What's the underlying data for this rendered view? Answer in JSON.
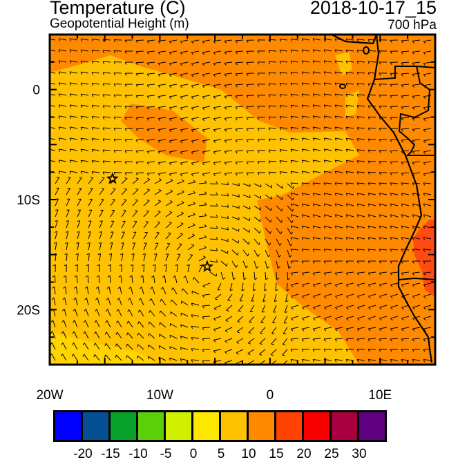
{
  "header": {
    "title": "Temperature (C)",
    "subtitle": "Geopotential Height (m)",
    "datetime": "2018-10-17_15",
    "level": "700 hPa"
  },
  "axes": {
    "x_labels": [
      {
        "lon": -20,
        "text": "20W"
      },
      {
        "lon": -10,
        "text": "10W"
      },
      {
        "lon": 0,
        "text": "0"
      },
      {
        "lon": 10,
        "text": "10E"
      }
    ],
    "y_labels": [
      {
        "lat": 0,
        "text": "0"
      },
      {
        "lat": -10,
        "text": "10S"
      },
      {
        "lat": -20,
        "text": "20S"
      }
    ],
    "lon_range": [
      -20,
      15
    ],
    "lat_range": [
      -25,
      5
    ]
  },
  "markers": [
    {
      "name": "star",
      "lon": -14.3,
      "lat": -8.1
    },
    {
      "name": "star",
      "lon": -5.7,
      "lat": -16.1
    }
  ],
  "colorbar": {
    "colors": [
      "#0000ff",
      "#045092",
      "#07a02a",
      "#5ccf0b",
      "#cff000",
      "#ffe800",
      "#ffc200",
      "#ff8a00",
      "#ff4200",
      "#f70000",
      "#a8003f",
      "#5e007f"
    ],
    "labels": [
      "-20",
      "-15",
      "-10",
      "-5",
      "0",
      "5",
      "10",
      "15",
      "20",
      "25",
      "30"
    ]
  },
  "field_colors": {
    "warm": "#ff8a00",
    "mild": "#ffc200",
    "light": "#ffd400",
    "hot": "#ff4a10"
  }
}
